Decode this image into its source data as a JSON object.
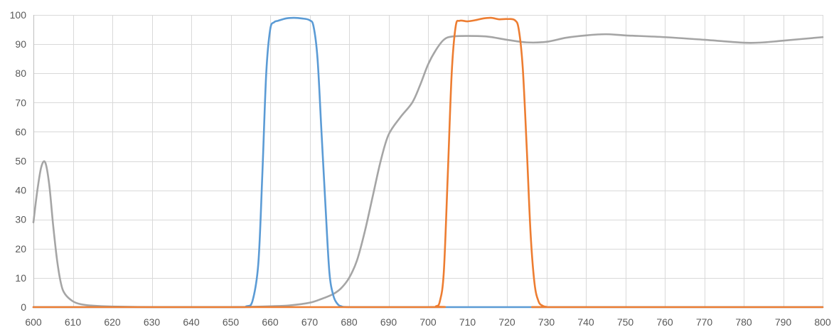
{
  "chart_data": {
    "type": "line",
    "title": "",
    "xlabel": "",
    "ylabel": "",
    "xlim": [
      600,
      800
    ],
    "ylim": [
      0,
      100
    ],
    "x_ticks": [
      "600",
      "610",
      "620",
      "630",
      "640",
      "650",
      "660",
      "670",
      "680",
      "690",
      "700",
      "710",
      "720",
      "730",
      "740",
      "750",
      "760",
      "770",
      "780",
      "790",
      "800"
    ],
    "y_ticks": [
      "0",
      "10",
      "20",
      "30",
      "40",
      "50",
      "60",
      "70",
      "80",
      "90",
      "100"
    ],
    "grid": true,
    "legend": "none",
    "series": [
      {
        "color": "#5b9bd5",
        "x": [
          600,
          650,
          654,
          655.5,
          657,
          658,
          659,
          660,
          661,
          662,
          664,
          666,
          668,
          670,
          671,
          672,
          673,
          674,
          675,
          676,
          677,
          678,
          680,
          690,
          700,
          710,
          720,
          730,
          800
        ],
        "y": [
          0,
          0,
          0.3,
          2,
          15,
          45,
          80,
          95,
          97.5,
          98,
          98.8,
          99,
          98.8,
          98.2,
          96,
          85,
          60,
          35,
          12,
          4,
          1.2,
          0.3,
          0,
          0,
          0,
          0,
          0,
          0,
          0
        ]
      },
      {
        "color": "#ed7d31",
        "x": [
          600,
          650,
          700,
          702,
          703,
          704,
          705,
          706,
          707,
          708,
          710,
          712,
          714,
          716,
          718,
          720,
          722,
          723,
          724,
          725,
          726,
          727,
          728,
          729,
          730,
          732,
          800
        ],
        "y": [
          0,
          0,
          0,
          0.3,
          2,
          12,
          45,
          80,
          96,
          98,
          97.8,
          98.2,
          98.8,
          99,
          98.5,
          98.6,
          98.2,
          95,
          82,
          55,
          25,
          8,
          2,
          0.5,
          0.1,
          0,
          0
        ]
      },
      {
        "color": "#a5a5a5",
        "x": [
          600,
          601,
          602,
          603,
          604,
          605,
          606,
          607,
          608,
          610,
          612,
          615,
          620,
          630,
          640,
          650,
          660,
          665,
          670,
          673,
          676,
          678,
          680,
          682,
          684,
          686,
          688,
          690,
          693,
          696,
          698,
          700,
          702,
          704,
          706,
          710,
          715,
          720,
          725,
          730,
          735,
          740,
          745,
          750,
          760,
          770,
          780,
          785,
          790,
          800
        ],
        "y": [
          29,
          40,
          48,
          49.5,
          42,
          28,
          16,
          8,
          4.5,
          2,
          1,
          0.5,
          0.2,
          0,
          0,
          0,
          0.3,
          0.6,
          1.5,
          2.8,
          4.5,
          6.5,
          10,
          16,
          26,
          38,
          50,
          59,
          65,
          70,
          76,
          83,
          88,
          91.5,
          92.6,
          92.8,
          92.6,
          91.5,
          90.6,
          90.8,
          92.2,
          93,
          93.4,
          93,
          92.4,
          91.5,
          90.5,
          90.6,
          91.2,
          92.4
        ]
      }
    ]
  }
}
